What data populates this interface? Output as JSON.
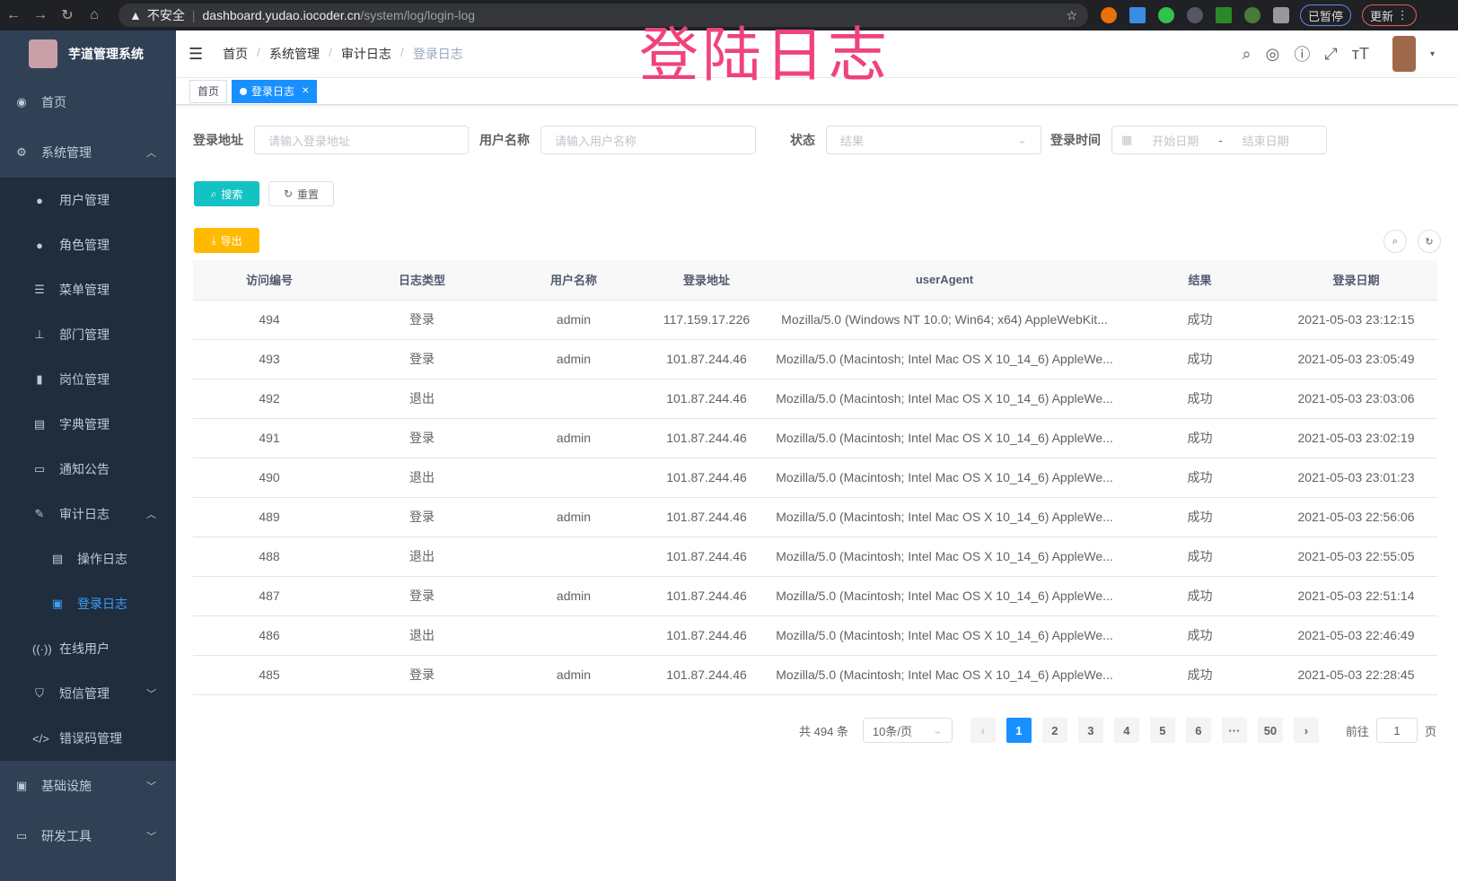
{
  "browser": {
    "insecure": "不安全",
    "host": "dashboard.yudao.iocoder.cn",
    "path": "/system/log/login-log",
    "paused": "已暂停",
    "update": "更新"
  },
  "overlay_title": "登陆日志",
  "sidebar": {
    "title": "芋道管理系统",
    "items": [
      {
        "label": "首页",
        "icon": "dashboard-icon"
      },
      {
        "label": "系统管理",
        "icon": "gear-icon"
      },
      {
        "label": "用户管理",
        "icon": "user-icon"
      },
      {
        "label": "角色管理",
        "icon": "peoples-icon"
      },
      {
        "label": "菜单管理",
        "icon": "tree-table-icon"
      },
      {
        "label": "部门管理",
        "icon": "tree-icon"
      },
      {
        "label": "岗位管理",
        "icon": "post-icon"
      },
      {
        "label": "字典管理",
        "icon": "dict-icon"
      },
      {
        "label": "通知公告",
        "icon": "message-icon"
      },
      {
        "label": "审计日志",
        "icon": "log-icon"
      },
      {
        "label": "操作日志",
        "icon": "form-icon"
      },
      {
        "label": "登录日志",
        "icon": "logininfor-icon"
      },
      {
        "label": "在线用户",
        "icon": "online-icon"
      },
      {
        "label": "短信管理",
        "icon": "validCode-icon"
      },
      {
        "label": "错误码管理",
        "icon": "code-icon"
      },
      {
        "label": "基础设施",
        "icon": "monitor-icon"
      },
      {
        "label": "研发工具",
        "icon": "tool-icon"
      }
    ]
  },
  "breadcrumb": [
    "首页",
    "系统管理",
    "审计日志",
    "登录日志"
  ],
  "tags": {
    "home": "首页",
    "current": "登录日志"
  },
  "filters": {
    "addr_label": "登录地址",
    "addr_placeholder": "请输入登录地址",
    "user_label": "用户名称",
    "user_placeholder": "请输入用户名称",
    "status_label": "状态",
    "status_placeholder": "结果",
    "time_label": "登录时间",
    "start_placeholder": "开始日期",
    "end_placeholder": "结束日期",
    "range_sep": "-"
  },
  "buttons": {
    "search": "搜索",
    "reset": "重置",
    "export": "导出"
  },
  "table": {
    "columns": [
      "访问编号",
      "日志类型",
      "用户名称",
      "登录地址",
      "userAgent",
      "结果",
      "登录日期"
    ],
    "rows": [
      [
        "494",
        "登录",
        "admin",
        "117.159.17.226",
        "Mozilla/5.0 (Windows NT 10.0; Win64; x64) AppleWebKit...",
        "成功",
        "2021-05-03 23:12:15"
      ],
      [
        "493",
        "登录",
        "admin",
        "101.87.244.46",
        "Mozilla/5.0 (Macintosh; Intel Mac OS X 10_14_6) AppleWe...",
        "成功",
        "2021-05-03 23:05:49"
      ],
      [
        "492",
        "退出",
        "",
        "101.87.244.46",
        "Mozilla/5.0 (Macintosh; Intel Mac OS X 10_14_6) AppleWe...",
        "成功",
        "2021-05-03 23:03:06"
      ],
      [
        "491",
        "登录",
        "admin",
        "101.87.244.46",
        "Mozilla/5.0 (Macintosh; Intel Mac OS X 10_14_6) AppleWe...",
        "成功",
        "2021-05-03 23:02:19"
      ],
      [
        "490",
        "退出",
        "",
        "101.87.244.46",
        "Mozilla/5.0 (Macintosh; Intel Mac OS X 10_14_6) AppleWe...",
        "成功",
        "2021-05-03 23:01:23"
      ],
      [
        "489",
        "登录",
        "admin",
        "101.87.244.46",
        "Mozilla/5.0 (Macintosh; Intel Mac OS X 10_14_6) AppleWe...",
        "成功",
        "2021-05-03 22:56:06"
      ],
      [
        "488",
        "退出",
        "",
        "101.87.244.46",
        "Mozilla/5.0 (Macintosh; Intel Mac OS X 10_14_6) AppleWe...",
        "成功",
        "2021-05-03 22:55:05"
      ],
      [
        "487",
        "登录",
        "admin",
        "101.87.244.46",
        "Mozilla/5.0 (Macintosh; Intel Mac OS X 10_14_6) AppleWe...",
        "成功",
        "2021-05-03 22:51:14"
      ],
      [
        "486",
        "退出",
        "",
        "101.87.244.46",
        "Mozilla/5.0 (Macintosh; Intel Mac OS X 10_14_6) AppleWe...",
        "成功",
        "2021-05-03 22:46:49"
      ],
      [
        "485",
        "登录",
        "admin",
        "101.87.244.46",
        "Mozilla/5.0 (Macintosh; Intel Mac OS X 10_14_6) AppleWe...",
        "成功",
        "2021-05-03 22:28:45"
      ]
    ]
  },
  "pagination": {
    "total": "共 494 条",
    "page_size": "10条/页",
    "pages": [
      "1",
      "2",
      "3",
      "4",
      "5",
      "6",
      "···",
      "50"
    ],
    "current": "1",
    "goto_label": "前往",
    "goto_value": "1",
    "goto_suffix": "页"
  },
  "colors": {
    "sidebar": "#304156",
    "primary": "#1890ff",
    "search": "#13c2c2",
    "export": "#ffba00",
    "overlay": "#f0437a"
  }
}
